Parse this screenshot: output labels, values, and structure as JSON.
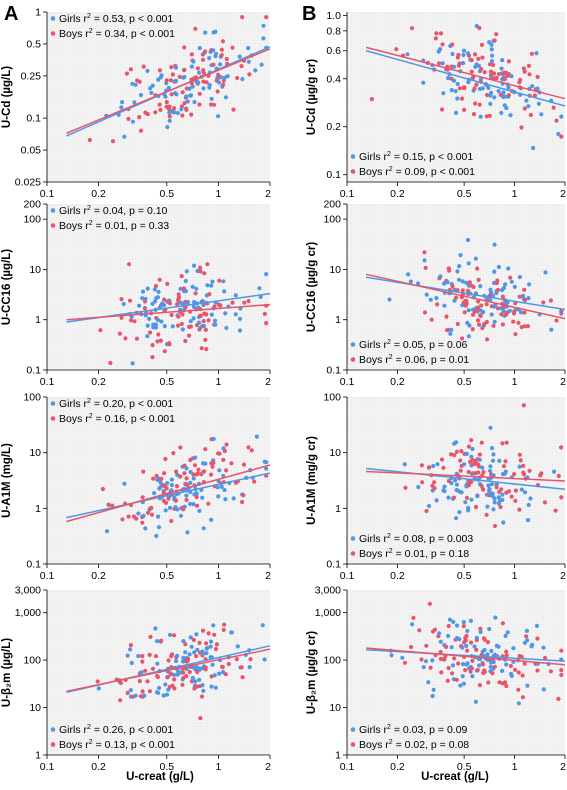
{
  "panels": {
    "left": "A",
    "right": "B"
  },
  "colors": {
    "girls": "#4e97e6",
    "boys": "#e8556a",
    "grid": "#ffffff",
    "plot_bg": "#ebebeb"
  },
  "x_axis_label": "U-creat (g/L)",
  "chart_data": [
    {
      "type": "scatter",
      "panel": "A",
      "row": 1,
      "ylabel": "U-Cd (µg/L)",
      "x_scale": "log",
      "y_scale": "log",
      "xlim": [
        0.1,
        2
      ],
      "ylim": [
        0.025,
        1
      ],
      "xticks": [
        "0.1",
        "0.2",
        "0.5",
        "1",
        "2"
      ],
      "yticks": [
        {
          "v": 0.025,
          "label": "0.025"
        },
        {
          "v": 0.05,
          "label": "0.05"
        },
        {
          "v": 0.1,
          "label": "0.1"
        },
        {
          "v": 0.25,
          "label": "0.25"
        },
        {
          "v": 0.5,
          "label": "0.5"
        },
        {
          "v": 1,
          "label": "1"
        }
      ],
      "legend_position": "top-left",
      "series": [
        {
          "name": "Girls",
          "stat": "0.53, p < 0.001",
          "line": [
            [
              0.13,
              0.068
            ],
            [
              2,
              0.47
            ]
          ]
        },
        {
          "name": "Boys",
          "stat": "0.34, p < 0.001",
          "line": [
            [
              0.13,
              0.072
            ],
            [
              2,
              0.45
            ]
          ]
        }
      ]
    },
    {
      "type": "scatter",
      "panel": "B",
      "row": 1,
      "ylabel": "U-Cd (µg/g cr)",
      "x_scale": "log",
      "y_scale": "log",
      "xlim": [
        0.1,
        2
      ],
      "ylim": [
        0.09,
        1.05
      ],
      "xticks": [
        "0.1",
        "0.2",
        "0.5",
        "1",
        "2"
      ],
      "yticks": [
        {
          "v": 0.1,
          "label": "0.1"
        },
        {
          "v": 0.2,
          "label": "0.2"
        },
        {
          "v": 0.4,
          "label": "0.4"
        },
        {
          "v": 0.6,
          "label": "0.6"
        },
        {
          "v": 0.8,
          "label": "0.8"
        },
        {
          "v": 1.0,
          "label": "1.0"
        }
      ],
      "legend_position": "bottom-left",
      "series": [
        {
          "name": "Girls",
          "stat": "0.15, p < 0.001",
          "line": [
            [
              0.13,
              0.6
            ],
            [
              2,
              0.27
            ]
          ]
        },
        {
          "name": "Boys",
          "stat": "0.09, p < 0.001",
          "line": [
            [
              0.13,
              0.63
            ],
            [
              2,
              0.3
            ]
          ]
        }
      ]
    },
    {
      "type": "scatter",
      "panel": "A",
      "row": 2,
      "ylabel": "U-CC16 (µg/L)",
      "x_scale": "log",
      "y_scale": "log",
      "xlim": [
        0.1,
        2
      ],
      "ylim": [
        0.1,
        200
      ],
      "xticks": [
        "0.1",
        "0.2",
        "0.5",
        "1",
        "2"
      ],
      "yticks": [
        {
          "v": 0.1,
          "label": "0.1"
        },
        {
          "v": 1,
          "label": "1"
        },
        {
          "v": 10,
          "label": "10"
        },
        {
          "v": 100,
          "label": "100"
        },
        {
          "v": 200,
          "label": "200"
        }
      ],
      "legend_position": "top-left",
      "series": [
        {
          "name": "Girls",
          "stat": "0.04, p = 0.10",
          "line": [
            [
              0.13,
              0.9
            ],
            [
              2,
              3.3
            ]
          ]
        },
        {
          "name": "Boys",
          "stat": "0.01, p = 0.33",
          "line": [
            [
              0.13,
              1.0
            ],
            [
              2,
              2.0
            ]
          ]
        }
      ]
    },
    {
      "type": "scatter",
      "panel": "B",
      "row": 2,
      "ylabel": "U-CC16 (µg/g cr)",
      "x_scale": "log",
      "y_scale": "log",
      "xlim": [
        0.1,
        2
      ],
      "ylim": [
        0.1,
        200
      ],
      "xticks": [
        "0.1",
        "0.2",
        "0.5",
        "1",
        "2"
      ],
      "yticks": [
        {
          "v": 0.1,
          "label": "0.1"
        },
        {
          "v": 1,
          "label": "1"
        },
        {
          "v": 10,
          "label": "10"
        },
        {
          "v": 100,
          "label": "100"
        },
        {
          "v": 200,
          "label": "200"
        }
      ],
      "legend_position": "bottom-left",
      "series": [
        {
          "name": "Girls",
          "stat": "0.05, p = 0.06",
          "line": [
            [
              0.13,
              7.0
            ],
            [
              2,
              1.6
            ]
          ]
        },
        {
          "name": "Boys",
          "stat": "0.06, p = 0.01",
          "line": [
            [
              0.13,
              8.0
            ],
            [
              2,
              1.05
            ]
          ]
        }
      ]
    },
    {
      "type": "scatter",
      "panel": "A",
      "row": 3,
      "ylabel": "U-A1M (mg/L)",
      "x_scale": "log",
      "y_scale": "log",
      "xlim": [
        0.1,
        2
      ],
      "ylim": [
        0.1,
        100
      ],
      "xticks": [
        "0.1",
        "0.2",
        "0.5",
        "1",
        "2"
      ],
      "yticks": [
        {
          "v": 0.1,
          "label": "0.1"
        },
        {
          "v": 1,
          "label": "1"
        },
        {
          "v": 10,
          "label": "10"
        },
        {
          "v": 100,
          "label": "100"
        }
      ],
      "legend_position": "top-left",
      "series": [
        {
          "name": "Girls",
          "stat": "0.20, p < 0.001",
          "line": [
            [
              0.13,
              0.68
            ],
            [
              2,
              4.3
            ]
          ]
        },
        {
          "name": "Boys",
          "stat": "0.16, p < 0.001",
          "line": [
            [
              0.13,
              0.58
            ],
            [
              2,
              6.0
            ]
          ]
        }
      ]
    },
    {
      "type": "scatter",
      "panel": "B",
      "row": 3,
      "ylabel": "U-A1M (mg/g cr)",
      "x_scale": "log",
      "y_scale": "log",
      "xlim": [
        0.1,
        2
      ],
      "ylim": [
        0.1,
        100
      ],
      "xticks": [
        "0.1",
        "0.2",
        "0.5",
        "1",
        "2"
      ],
      "yticks": [
        {
          "v": 0.1,
          "label": "0.1"
        },
        {
          "v": 1,
          "label": "1"
        },
        {
          "v": 10,
          "label": "10"
        },
        {
          "v": 100,
          "label": "100"
        }
      ],
      "legend_position": "bottom-left",
      "series": [
        {
          "name": "Girls",
          "stat": "0.08, p = 0.003",
          "line": [
            [
              0.13,
              5.2
            ],
            [
              2,
              2.2
            ]
          ]
        },
        {
          "name": "Boys",
          "stat": "0.01, p = 0.18",
          "line": [
            [
              0.13,
              4.6
            ],
            [
              2,
              3.1
            ]
          ]
        }
      ]
    },
    {
      "type": "scatter",
      "panel": "A",
      "row": 4,
      "ylabel": "U-β₂m (µg/L)",
      "x_scale": "log",
      "y_scale": "log",
      "xlim": [
        0.1,
        2
      ],
      "ylim": [
        1,
        3000
      ],
      "xticks": [
        "0.1",
        "0.2",
        "0.5",
        "1",
        "2"
      ],
      "yticks": [
        {
          "v": 1,
          "label": "1"
        },
        {
          "v": 10,
          "label": "10"
        },
        {
          "v": 100,
          "label": "100"
        },
        {
          "v": 1000,
          "label": "1,000"
        },
        {
          "v": 3000,
          "label": "3,000"
        }
      ],
      "legend_position": "bottom-left",
      "series": [
        {
          "name": "Girls",
          "stat": "0.26, p < 0.001",
          "line": [
            [
              0.13,
              21
            ],
            [
              2,
              200
            ]
          ]
        },
        {
          "name": "Boys",
          "stat": "0.13, p < 0.001",
          "line": [
            [
              0.13,
              22
            ],
            [
              2,
              170
            ]
          ]
        }
      ]
    },
    {
      "type": "scatter",
      "panel": "B",
      "row": 4,
      "ylabel": "U-β₂m (µg/g cr)",
      "x_scale": "log",
      "y_scale": "log",
      "xlim": [
        0.1,
        2
      ],
      "ylim": [
        1,
        3000
      ],
      "xticks": [
        "0.1",
        "0.2",
        "0.5",
        "1",
        "2"
      ],
      "yticks": [
        {
          "v": 1,
          "label": "1"
        },
        {
          "v": 10,
          "label": "10"
        },
        {
          "v": 100,
          "label": "100"
        },
        {
          "v": 1000,
          "label": "1,000"
        },
        {
          "v": 3000,
          "label": "3,000"
        }
      ],
      "legend_position": "bottom-left",
      "series": [
        {
          "name": "Girls",
          "stat": "0.03, p = 0.09",
          "line": [
            [
              0.13,
              165
            ],
            [
              2,
              95
            ]
          ]
        },
        {
          "name": "Boys",
          "stat": "0.02, p = 0.08",
          "line": [
            [
              0.13,
              180
            ],
            [
              2,
              80
            ]
          ]
        }
      ]
    }
  ]
}
